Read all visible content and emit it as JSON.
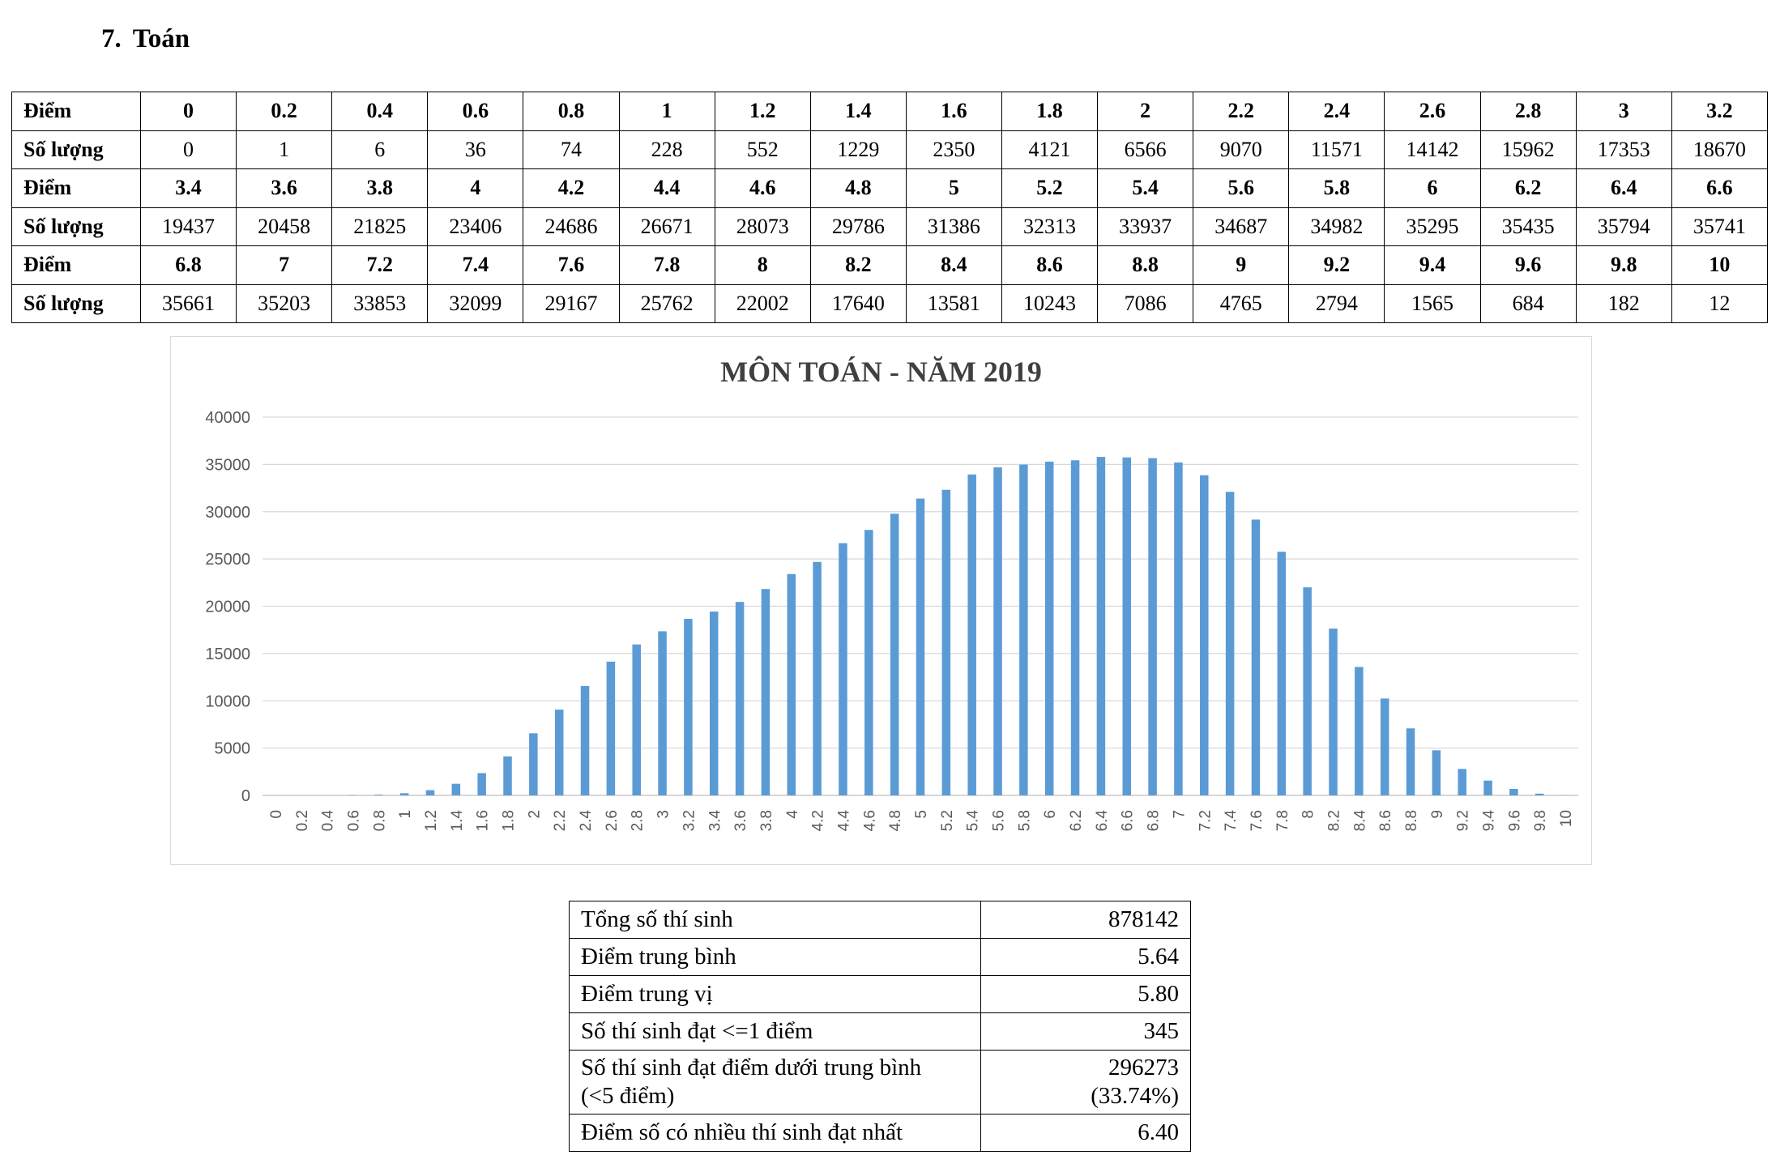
{
  "heading": {
    "number": "7.",
    "title": "Toán"
  },
  "score_table": {
    "row_label_score": "Điểm",
    "row_label_count": "Số lượng",
    "groups": [
      {
        "scores": [
          "0",
          "0.2",
          "0.4",
          "0.6",
          "0.8",
          "1",
          "1.2",
          "1.4",
          "1.6",
          "1.8",
          "2",
          "2.2",
          "2.4",
          "2.6",
          "2.8",
          "3",
          "3.2"
        ],
        "counts": [
          "0",
          "1",
          "6",
          "36",
          "74",
          "228",
          "552",
          "1229",
          "2350",
          "4121",
          "6566",
          "9070",
          "11571",
          "14142",
          "15962",
          "17353",
          "18670"
        ]
      },
      {
        "scores": [
          "3.4",
          "3.6",
          "3.8",
          "4",
          "4.2",
          "4.4",
          "4.6",
          "4.8",
          "5",
          "5.2",
          "5.4",
          "5.6",
          "5.8",
          "6",
          "6.2",
          "6.4",
          "6.6"
        ],
        "counts": [
          "19437",
          "20458",
          "21825",
          "23406",
          "24686",
          "26671",
          "28073",
          "29786",
          "31386",
          "32313",
          "33937",
          "34687",
          "34982",
          "35295",
          "35435",
          "35794",
          "35741"
        ]
      },
      {
        "scores": [
          "6.8",
          "7",
          "7.2",
          "7.4",
          "7.6",
          "7.8",
          "8",
          "8.2",
          "8.4",
          "8.6",
          "8.8",
          "9",
          "9.2",
          "9.4",
          "9.6",
          "9.8",
          "10"
        ],
        "counts": [
          "35661",
          "35203",
          "33853",
          "32099",
          "29167",
          "25762",
          "22002",
          "17640",
          "13581",
          "10243",
          "7086",
          "4765",
          "2794",
          "1565",
          "684",
          "182",
          "12"
        ]
      }
    ]
  },
  "chart_data": {
    "type": "bar",
    "title": "MÔN TOÁN - NĂM 2019",
    "xlabel": "",
    "ylabel": "",
    "ylim": [
      0,
      40000
    ],
    "y_ticks": [
      0,
      5000,
      10000,
      15000,
      20000,
      25000,
      30000,
      35000,
      40000
    ],
    "grid": true,
    "bar_color": "#5b9bd5",
    "categories": [
      "0",
      "0.2",
      "0.4",
      "0.6",
      "0.8",
      "1",
      "1.2",
      "1.4",
      "1.6",
      "1.8",
      "2",
      "2.2",
      "2.4",
      "2.6",
      "2.8",
      "3",
      "3.2",
      "3.4",
      "3.6",
      "3.8",
      "4",
      "4.2",
      "4.4",
      "4.6",
      "4.8",
      "5",
      "5.2",
      "5.4",
      "5.6",
      "5.8",
      "6",
      "6.2",
      "6.4",
      "6.6",
      "6.8",
      "7",
      "7.2",
      "7.4",
      "7.6",
      "7.8",
      "8",
      "8.2",
      "8.4",
      "8.6",
      "8.8",
      "9",
      "9.2",
      "9.4",
      "9.6",
      "9.8",
      "10"
    ],
    "values": [
      0,
      1,
      6,
      36,
      74,
      228,
      552,
      1229,
      2350,
      4121,
      6566,
      9070,
      11571,
      14142,
      15962,
      17353,
      18670,
      19437,
      20458,
      21825,
      23406,
      24686,
      26671,
      28073,
      29786,
      31386,
      32313,
      33937,
      34687,
      34982,
      35295,
      35435,
      35794,
      35741,
      35661,
      35203,
      33853,
      32099,
      29167,
      25762,
      22002,
      17640,
      13581,
      10243,
      7086,
      4765,
      2794,
      1565,
      684,
      182,
      12
    ]
  },
  "summary": [
    {
      "label": "Tổng số thí sinh",
      "value": "878142"
    },
    {
      "label": "Điểm trung bình",
      "value": "5.64"
    },
    {
      "label": "Điểm trung vị",
      "value": "5.80"
    },
    {
      "label": "Số thí sinh đạt <=1 điểm",
      "value": "345"
    },
    {
      "label": "Số thí sinh đạt điểm dưới trung bình",
      "label2": "(<5 điểm)",
      "value": "296273",
      "value2": "(33.74%)"
    },
    {
      "label": "Điểm số có nhiều thí sinh đạt nhất",
      "value": "6.40"
    }
  ]
}
